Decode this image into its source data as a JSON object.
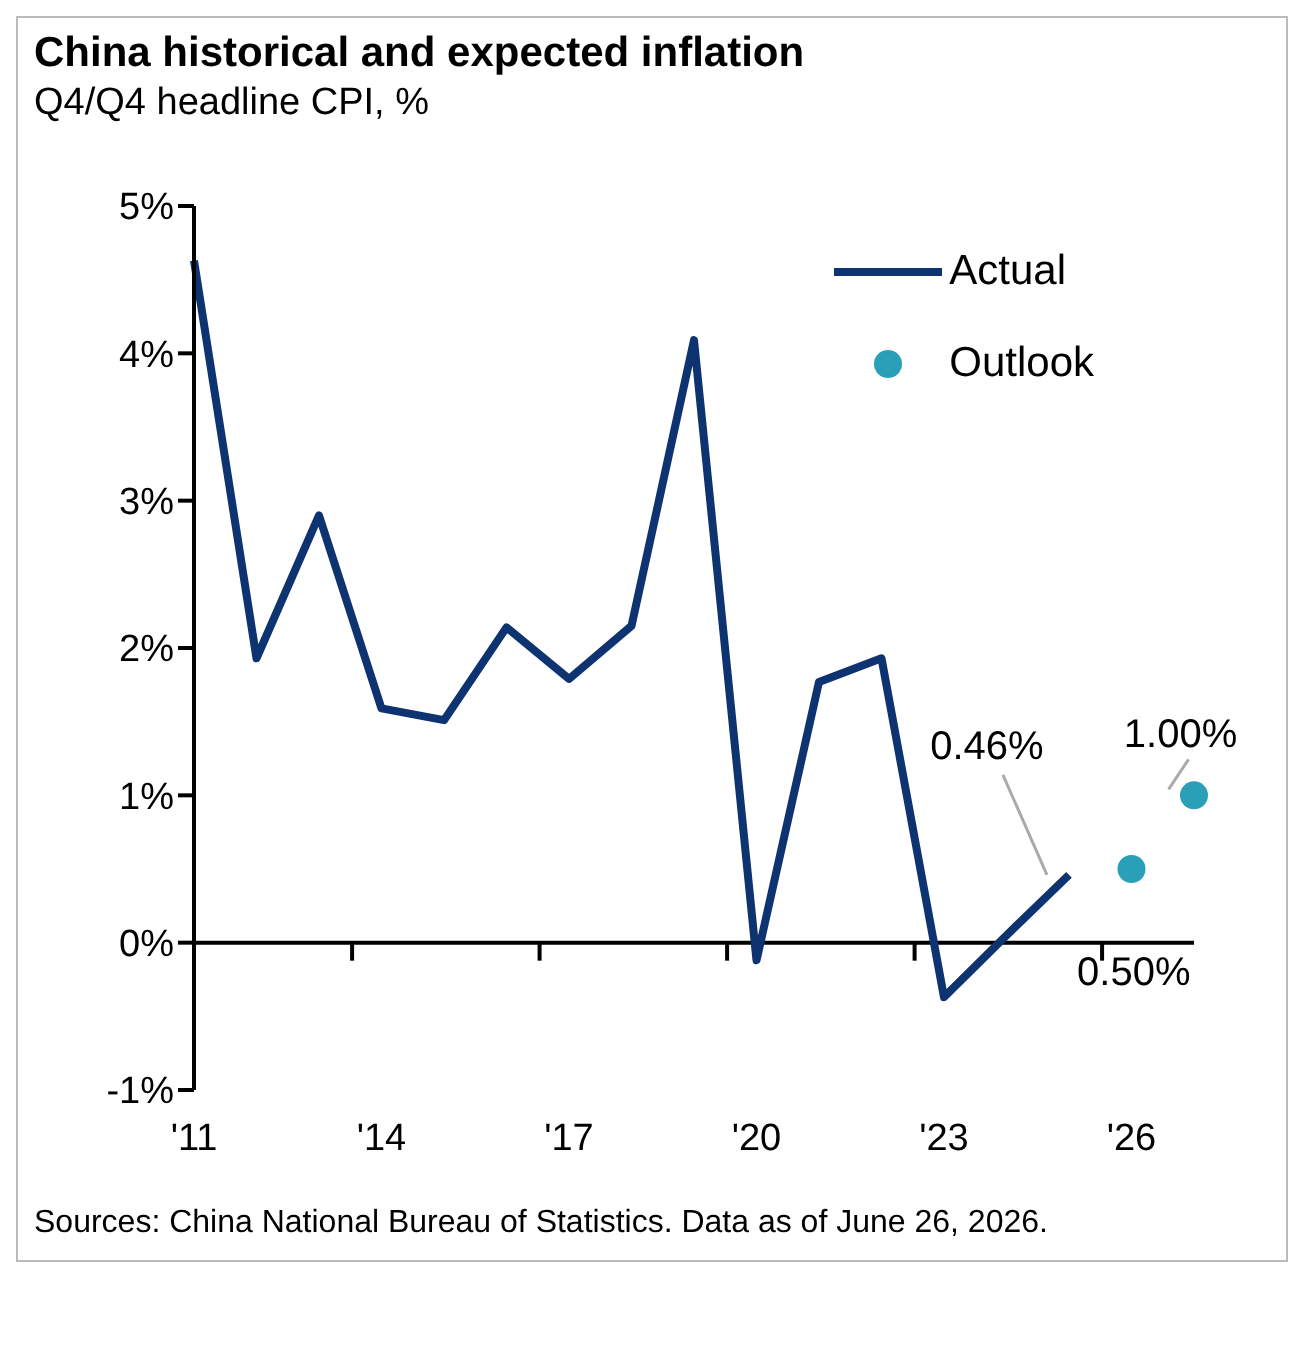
{
  "chart_data": {
    "type": "line",
    "title": "China historical and expected inflation",
    "subtitle": "Q4/Q4 headline CPI, %",
    "categories": [
      "'11",
      null,
      null,
      "'14",
      null,
      null,
      "'17",
      null,
      null,
      "'20",
      null,
      null,
      "'23",
      null,
      null,
      "'26",
      null
    ],
    "series": [
      {
        "name": "Actual",
        "color": "#0d3370",
        "marker": "none",
        "values": [
          4.63,
          1.93,
          2.9,
          1.59,
          1.51,
          2.14,
          1.79,
          2.15,
          4.09,
          -0.12,
          1.77,
          1.93,
          -0.37,
          0.05,
          0.46,
          null,
          null
        ],
        "value_labels": [
          null,
          null,
          null,
          null,
          null,
          null,
          null,
          null,
          null,
          null,
          null,
          null,
          null,
          null,
          "0.46%",
          null,
          null
        ]
      },
      {
        "name": "Outlook",
        "type": "scatter",
        "color": "#2aa0b8",
        "marker": "circle",
        "values": [
          null,
          null,
          null,
          null,
          null,
          null,
          null,
          null,
          null,
          null,
          null,
          null,
          null,
          null,
          null,
          0.5,
          1.0
        ],
        "value_labels": [
          null,
          null,
          null,
          null,
          null,
          null,
          null,
          null,
          null,
          null,
          null,
          null,
          null,
          null,
          null,
          "0.50%",
          "1.00%"
        ]
      }
    ],
    "ylim": [
      -1,
      5
    ],
    "yticks": [
      {
        "value": -1,
        "label": "-1%"
      },
      {
        "value": 0,
        "label": "0%"
      },
      {
        "value": 1,
        "label": "1%"
      },
      {
        "value": 2,
        "label": "2%"
      },
      {
        "value": 3,
        "label": "3%"
      },
      {
        "value": 4,
        "label": "4%"
      },
      {
        "value": 5,
        "label": "5%"
      }
    ],
    "ref_lines": [
      {
        "axis": "y",
        "value": 0,
        "color": "#000000"
      }
    ],
    "grid": false,
    "legend": "top right",
    "line_style": "solid",
    "annotations": [
      "Sources: China National Bureau of Statistics. Data as of June 26, 2026."
    ]
  }
}
